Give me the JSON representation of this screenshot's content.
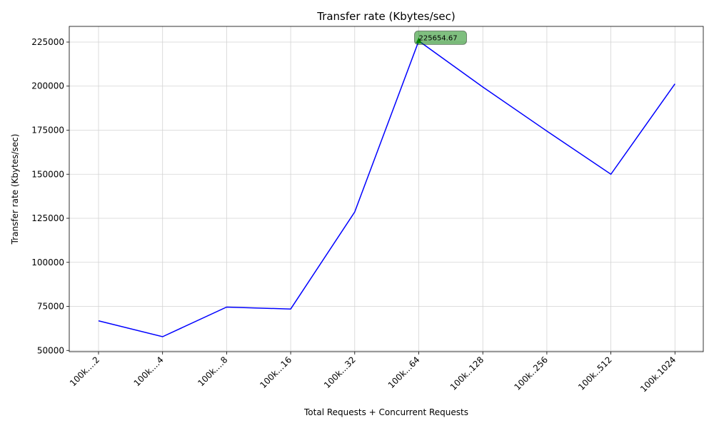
{
  "chart_data": {
    "type": "line",
    "title": "Transfer rate (Kbytes/sec)",
    "xlabel": "Total Requests + Concurrent Requests",
    "ylabel": "Transfer rate (Kbytes/sec)",
    "categories": [
      "100k....2",
      "100k....4",
      "100k....8",
      "100k...16",
      "100k...32",
      "100k...64",
      "100k..128",
      "100k..256",
      "100k..512",
      "100k.1024"
    ],
    "series": [
      {
        "values": [
          66800,
          57800,
          74600,
          73500,
          128600,
          225654.67,
          199500,
          174500,
          150000,
          201300
        ],
        "color": "#0000ff"
      }
    ],
    "ylim": [
      49300,
      233900
    ],
    "yticks": [
      50000,
      75000,
      100000,
      125000,
      150000,
      175000,
      200000,
      225000
    ],
    "grid": true,
    "annotation": {
      "text": "225654.67",
      "category_index": 5,
      "box_color": "#008000",
      "marker_color": "#008000"
    }
  }
}
